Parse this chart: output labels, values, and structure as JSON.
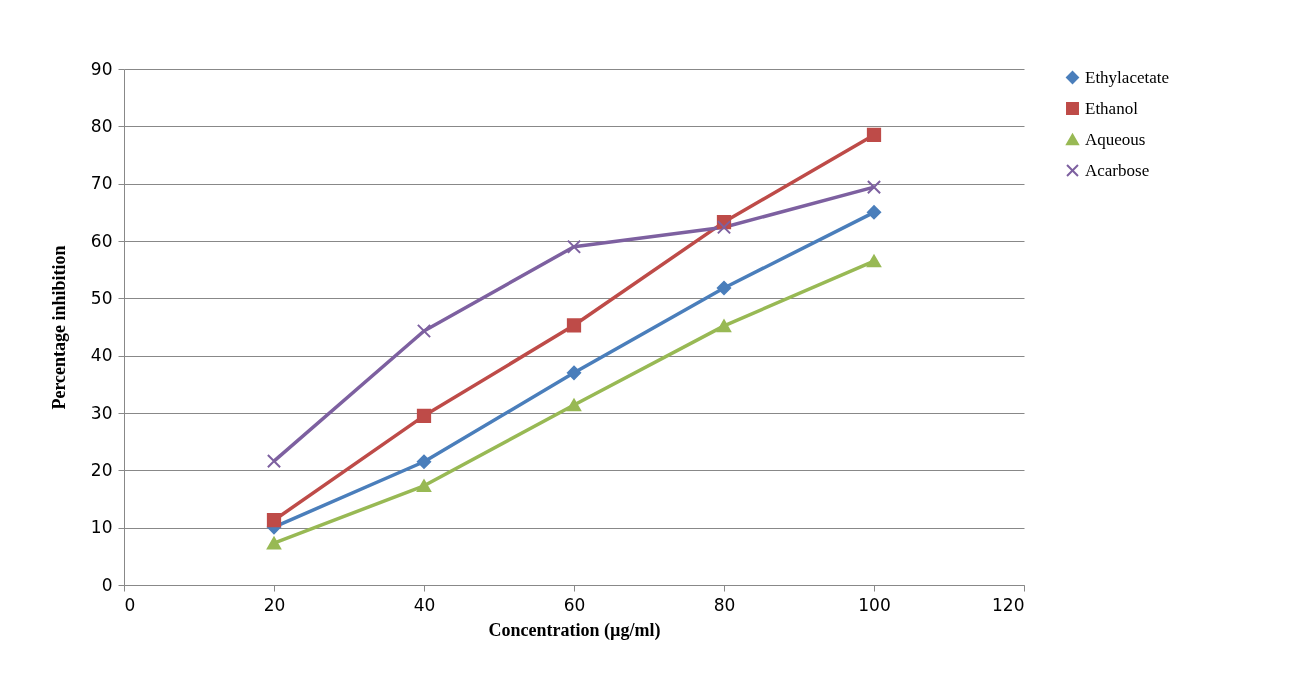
{
  "chart_data": {
    "type": "line",
    "xlabel": "Concentration (µg/ml)",
    "ylabel": "Percentage inhibition",
    "x": [
      20,
      40,
      60,
      80,
      100
    ],
    "series": [
      {
        "name": "Ethylacetate",
        "color": "#4a7ebb",
        "marker": "diamond",
        "values": [
          10.1,
          21.5,
          37,
          51.8,
          65
        ]
      },
      {
        "name": "Ethanol",
        "color": "#be4b48",
        "marker": "square",
        "values": [
          11.3,
          29.5,
          45.3,
          63.3,
          78.5
        ]
      },
      {
        "name": "Aqueous",
        "color": "#98b954",
        "marker": "triangle",
        "values": [
          7.3,
          17.3,
          31.4,
          45.2,
          56.5
        ]
      },
      {
        "name": "Acarbose",
        "color": "#7d60a0",
        "marker": "cross",
        "values": [
          21.6,
          44.3,
          59,
          62.4,
          69.4
        ]
      }
    ],
    "xlim": [
      0,
      120
    ],
    "xticks": [
      0,
      20,
      40,
      60,
      80,
      100,
      120
    ],
    "ylim": [
      0,
      90
    ],
    "yticks": [
      0,
      10,
      20,
      30,
      40,
      50,
      60,
      70,
      80,
      90
    ],
    "grid": "y",
    "legend": "right"
  }
}
